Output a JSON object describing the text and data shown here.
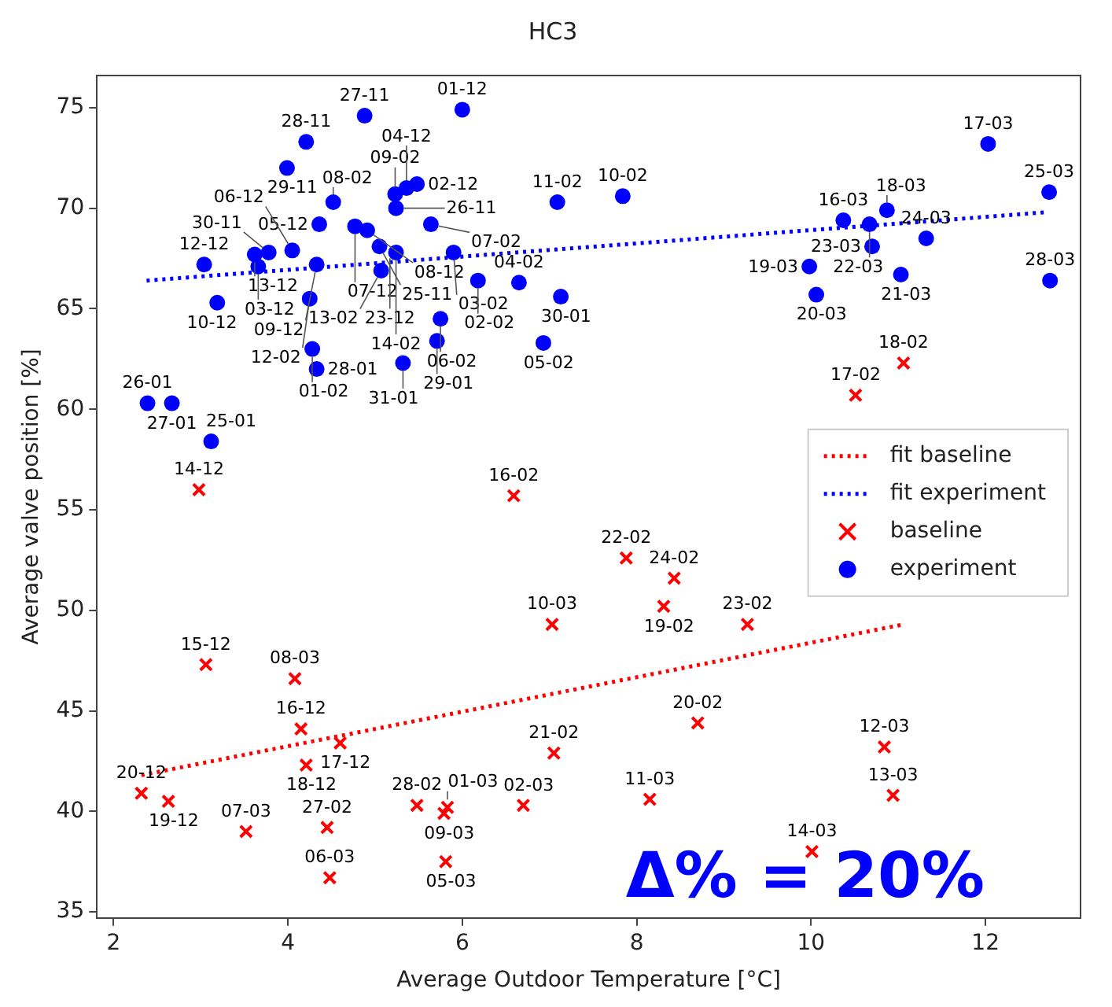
{
  "chart_data": {
    "type": "scatter",
    "title": "HC3",
    "xlabel": "Average Outdoor Temperature [°C]",
    "ylabel": "Average valve position [%]",
    "xlim": [
      1.81,
      13.09
    ],
    "xticks": [
      2,
      4,
      6,
      8,
      10,
      12
    ],
    "ylim": [
      34.7,
      76.6
    ],
    "yticks": [
      35,
      40,
      45,
      50,
      55,
      60,
      65,
      70,
      75
    ],
    "legend": "right",
    "grid": false,
    "series": [
      {
        "name": "fit baseline",
        "type": "line",
        "color": "#ff0000",
        "line_style": "dotted",
        "marker": "none",
        "x": [
          2.32,
          11.06
        ],
        "values": [
          41.8,
          49.3
        ]
      },
      {
        "name": "fit experiment",
        "type": "line",
        "color": "#0000ff",
        "line_style": "dotted",
        "marker": "none",
        "x": [
          2.38,
          12.7
        ],
        "values": [
          66.4,
          69.8
        ]
      },
      {
        "name": "baseline",
        "type": "scatter",
        "color": "#ff0000",
        "marker": "cross",
        "x": [
          2.32,
          2.63,
          3.52,
          4.45,
          4.48,
          5.48,
          5.79,
          5.83,
          5.81,
          6.7,
          7.05,
          4.15,
          4.6,
          4.21,
          4.08,
          3.06,
          2.98,
          6.59,
          7.03,
          7.88,
          8.43,
          8.31,
          9.27,
          8.7,
          8.15,
          10.84,
          10.94,
          10.01,
          11.06,
          10.51
        ],
        "values": [
          40.9,
          40.5,
          39.0,
          39.2,
          36.7,
          40.3,
          39.9,
          40.2,
          37.5,
          40.3,
          42.9,
          44.1,
          43.4,
          42.3,
          46.6,
          47.3,
          56.0,
          55.7,
          49.3,
          52.6,
          51.6,
          50.2,
          49.3,
          44.4,
          40.6,
          43.2,
          40.8,
          38.0,
          62.3,
          60.7
        ]
      },
      {
        "name": "experiment",
        "type": "scatter",
        "color": "#0000ff",
        "marker": "circle",
        "x": [
          4.88,
          6.0,
          4.21,
          3.99,
          7.09,
          4.52,
          5.23,
          5.36,
          5.48,
          5.24,
          4.36,
          4.77,
          4.91,
          5.64,
          5.05,
          5.17,
          5.24,
          5.9,
          5.07,
          3.04,
          3.62,
          3.66,
          3.78,
          4.05,
          4.33,
          3.19,
          4.25,
          6.18,
          6.65,
          7.13,
          5.75,
          5.71,
          6.93,
          4.28,
          4.33,
          5.32,
          2.39,
          2.67,
          3.12,
          7.84,
          12.03,
          12.73,
          12.74,
          10.37,
          10.87,
          10.67,
          10.7,
          11.32,
          9.98,
          10.06,
          11.03
        ],
        "values": [
          74.6,
          74.9,
          73.3,
          72.0,
          70.3,
          70.3,
          70.7,
          71.0,
          71.2,
          70.0,
          69.2,
          69.1,
          68.9,
          69.2,
          68.1,
          null,
          67.8,
          67.8,
          66.9,
          67.2,
          67.7,
          67.1,
          67.8,
          67.9,
          67.2,
          65.3,
          65.5,
          66.4,
          66.3,
          65.6,
          64.5,
          63.4,
          63.3,
          63.0,
          62.0,
          62.3,
          60.3,
          60.3,
          58.4,
          70.6,
          73.2,
          70.8,
          66.4,
          69.4,
          69.9,
          69.2,
          68.1,
          68.5,
          67.1,
          65.7,
          66.7
        ]
      }
    ],
    "annotations": [
      {
        "text": "20-12",
        "x": 2.32,
        "y": 40.9
      },
      {
        "text": "19-12",
        "x": 2.63,
        "y": 40.5
      },
      {
        "text": "07-03",
        "x": 3.52,
        "y": 39.0
      },
      {
        "text": "27-02",
        "x": 4.45,
        "y": 39.2
      },
      {
        "text": "06-03",
        "x": 4.48,
        "y": 36.7
      },
      {
        "text": "28-02",
        "x": 5.48,
        "y": 40.3
      },
      {
        "text": "09-03",
        "x": 5.79,
        "y": 39.9
      },
      {
        "text": "01-03",
        "x": 5.83,
        "y": 40.2
      },
      {
        "text": "05-03",
        "x": 5.81,
        "y": 37.5
      },
      {
        "text": "02-03",
        "x": 6.7,
        "y": 40.3
      },
      {
        "text": "21-02",
        "x": 7.05,
        "y": 42.9
      },
      {
        "text": "16-12",
        "x": 4.15,
        "y": 44.1
      },
      {
        "text": "17-12",
        "x": 4.6,
        "y": 43.4
      },
      {
        "text": "18-12",
        "x": 4.21,
        "y": 42.3
      },
      {
        "text": "08-03",
        "x": 4.08,
        "y": 46.6
      },
      {
        "text": "15-12",
        "x": 3.06,
        "y": 47.3
      },
      {
        "text": "14-12",
        "x": 2.98,
        "y": 56.0
      },
      {
        "text": "16-02",
        "x": 6.59,
        "y": 55.7
      },
      {
        "text": "10-03",
        "x": 7.03,
        "y": 49.3
      },
      {
        "text": "22-02",
        "x": 7.88,
        "y": 52.6
      },
      {
        "text": "24-02",
        "x": 8.43,
        "y": 51.6
      },
      {
        "text": "19-02",
        "x": 8.31,
        "y": 50.2
      },
      {
        "text": "23-02",
        "x": 9.27,
        "y": 49.3
      },
      {
        "text": "20-02",
        "x": 8.7,
        "y": 44.4
      },
      {
        "text": "11-03",
        "x": 8.15,
        "y": 40.6
      },
      {
        "text": "12-03",
        "x": 10.84,
        "y": 43.2
      },
      {
        "text": "13-03",
        "x": 10.94,
        "y": 40.8
      },
      {
        "text": "14-03",
        "x": 10.01,
        "y": 38.0
      },
      {
        "text": "18-02",
        "x": 11.06,
        "y": 62.3
      },
      {
        "text": "17-02",
        "x": 10.51,
        "y": 60.7
      },
      {
        "text": "27-11",
        "x": 4.88,
        "y": 74.6
      },
      {
        "text": "01-12",
        "x": 6.0,
        "y": 74.9
      },
      {
        "text": "28-11",
        "x": 4.21,
        "y": 73.3
      },
      {
        "text": "29-11",
        "x": 3.99,
        "y": 72.0
      },
      {
        "text": "11-02",
        "x": 7.09,
        "y": 70.3
      },
      {
        "text": "08-02",
        "x": 4.52,
        "y": 70.3
      },
      {
        "text": "09-02",
        "x": 5.23,
        "y": 70.7
      },
      {
        "text": "04-12",
        "x": 5.36,
        "y": 71.0
      },
      {
        "text": "02-12",
        "x": 5.48,
        "y": 71.2
      },
      {
        "text": "26-11",
        "x": 5.24,
        "y": 70.0
      },
      {
        "text": "05-12",
        "x": 4.36,
        "y": 69.2
      },
      {
        "text": "07-12",
        "x": 4.77,
        "y": 69.1
      },
      {
        "text": "08-12",
        "x": 4.91,
        "y": 68.9
      },
      {
        "text": "07-02",
        "x": 5.64,
        "y": 69.2
      },
      {
        "text": "25-11",
        "x": 5.05,
        "y": 68.1
      },
      {
        "text": "23-12",
        "x": 5.17,
        "y": 67.9
      },
      {
        "text": "14-02",
        "x": 5.24,
        "y": 67.8
      },
      {
        "text": "03-02",
        "x": 5.9,
        "y": 67.8
      },
      {
        "text": "13-02",
        "x": 5.07,
        "y": 66.9
      },
      {
        "text": "12-12",
        "x": 3.04,
        "y": 67.2
      },
      {
        "text": "13-12",
        "x": 3.62,
        "y": 67.7
      },
      {
        "text": "03-12",
        "x": 3.66,
        "y": 67.1
      },
      {
        "text": "30-11",
        "x": 3.78,
        "y": 67.8
      },
      {
        "text": "06-12",
        "x": 4.05,
        "y": 67.9
      },
      {
        "text": "09-12",
        "x": 4.33,
        "y": 67.2
      },
      {
        "text": "10-12",
        "x": 3.19,
        "y": 65.3
      },
      {
        "text": "12-02",
        "x": 4.25,
        "y": 65.5
      },
      {
        "text": "02-02",
        "x": 6.18,
        "y": 66.4
      },
      {
        "text": "04-02",
        "x": 6.65,
        "y": 66.3
      },
      {
        "text": "30-01",
        "x": 7.13,
        "y": 65.6
      },
      {
        "text": "06-02",
        "x": 5.75,
        "y": 64.5
      },
      {
        "text": "29-01",
        "x": 5.71,
        "y": 63.4
      },
      {
        "text": "05-02",
        "x": 6.93,
        "y": 63.3
      },
      {
        "text": "01-02",
        "x": 4.28,
        "y": 63.0
      },
      {
        "text": "28-01",
        "x": 4.33,
        "y": 62.0
      },
      {
        "text": "31-01",
        "x": 5.32,
        "y": 62.3
      },
      {
        "text": "26-01",
        "x": 2.39,
        "y": 60.3
      },
      {
        "text": "27-01",
        "x": 2.67,
        "y": 60.3
      },
      {
        "text": "25-01",
        "x": 3.12,
        "y": 58.4
      },
      {
        "text": "10-02",
        "x": 7.84,
        "y": 70.6
      },
      {
        "text": "17-03",
        "x": 12.03,
        "y": 73.2
      },
      {
        "text": "25-03",
        "x": 12.73,
        "y": 70.8
      },
      {
        "text": "28-03",
        "x": 12.74,
        "y": 66.4
      },
      {
        "text": "16-03",
        "x": 10.37,
        "y": 69.4
      },
      {
        "text": "18-03",
        "x": 10.87,
        "y": 69.9
      },
      {
        "text": "22-03",
        "x": 10.67,
        "y": 69.2
      },
      {
        "text": "23-03",
        "x": 10.7,
        "y": 68.1
      },
      {
        "text": "24-03",
        "x": 11.32,
        "y": 68.5
      },
      {
        "text": "19-03",
        "x": 9.98,
        "y": 67.1
      },
      {
        "text": "20-03",
        "x": 10.06,
        "y": 65.7
      },
      {
        "text": "21-03",
        "x": 11.03,
        "y": 66.7
      },
      "Δ% = 20%"
    ]
  }
}
